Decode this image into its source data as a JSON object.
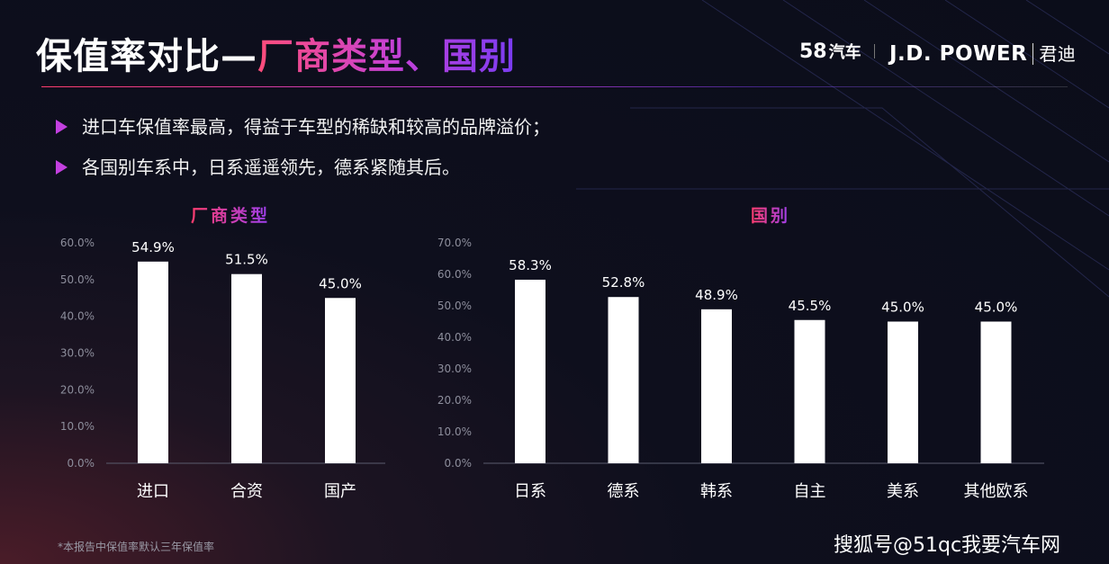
{
  "header": {
    "title_main": "保值率对比—",
    "title_highlight": "厂商类型、国别",
    "logo_58": "58",
    "logo_58_sub": "汽车",
    "logo_jd": "J.D. POWER",
    "logo_jd_cn": "君迪"
  },
  "bullets": [
    "进口车保值率最高，得益于车型的稀缺和较高的品牌溢价；",
    "各国别车系中，日系遥遥领先，德系紧随其后。"
  ],
  "footnote": "*本报告中保值率默认三年保值率",
  "watermark": "搜狐号@51qc我要汽车网",
  "colors": {
    "bar": "#ffffff",
    "accent_pink": "#ff3d6e",
    "accent_purple": "#9b3ff0",
    "background": "#0e0f1d"
  },
  "chart_data": [
    {
      "type": "bar",
      "title": "厂商类型",
      "categories": [
        "进口",
        "合资",
        "国产"
      ],
      "values": [
        54.9,
        51.5,
        45.0
      ],
      "value_labels": [
        "54.9%",
        "51.5%",
        "45.0%"
      ],
      "ylim": [
        0,
        60
      ],
      "yticks": [
        "0.0%",
        "10.0%",
        "20.0%",
        "30.0%",
        "40.0%",
        "50.0%",
        "60.0%"
      ],
      "grid": false,
      "legend": "none"
    },
    {
      "type": "bar",
      "title": "国别",
      "categories": [
        "日系",
        "德系",
        "韩系",
        "自主",
        "美系",
        "其他欧系"
      ],
      "values": [
        58.3,
        52.8,
        48.9,
        45.5,
        45.0,
        45.0
      ],
      "value_labels": [
        "58.3%",
        "52.8%",
        "48.9%",
        "45.5%",
        "45.0%",
        "45.0%"
      ],
      "ylim": [
        0,
        70
      ],
      "yticks": [
        "0.0%",
        "10.0%",
        "20.0%",
        "30.0%",
        "40.0%",
        "50.0%",
        "60.0%",
        "70.0%"
      ],
      "grid": false,
      "legend": "none"
    }
  ]
}
